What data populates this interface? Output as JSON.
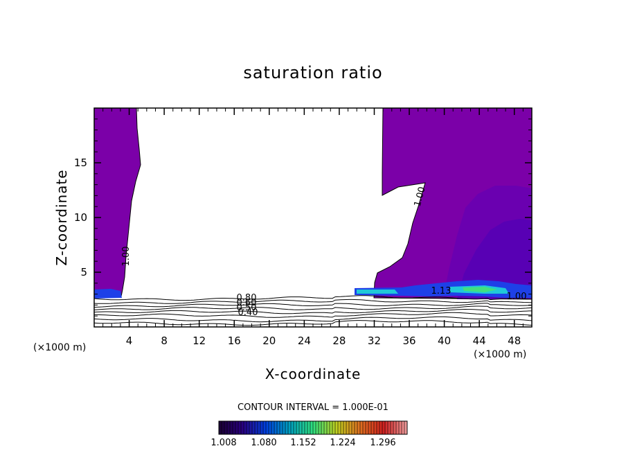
{
  "chart_data": {
    "type": "heatmap",
    "title": "saturation ratio",
    "xlabel": "X-coordinate",
    "ylabel": "Z-coordinate",
    "x_unit": "(×1000 m)",
    "z_unit": "(×1000 m)",
    "xlim": [
      0,
      50
    ],
    "ylim": [
      0,
      20
    ],
    "x_ticks": [
      4,
      8,
      12,
      16,
      20,
      24,
      28,
      32,
      36,
      40,
      44,
      48
    ],
    "y_ticks": [
      5,
      10,
      15
    ],
    "contour_interval": "CONTOUR INTERVAL = 1.000E-01",
    "contour_labels": [
      "1.00",
      "1.00",
      "0.80",
      "0.60",
      "0.50",
      "0.40",
      "1.13",
      "1.00"
    ],
    "colorbar": {
      "ticks": [
        "1.008",
        "1.080",
        "1.152",
        "1.224",
        "1.296"
      ],
      "colors": [
        "#1a0033",
        "#2a0080",
        "#0040e0",
        "#00a0c0",
        "#30e080",
        "#c0d020",
        "#e07020",
        "#d02020",
        "#f0a0a0"
      ]
    },
    "colors": {
      "fill_main": "#7b00a8",
      "fill_mid": "#6a00b0",
      "fill_deep": "#5800b4",
      "fill_blue": "#1e40e8",
      "fill_cyan": "#20c8d8",
      "fill_green": "#40e080"
    }
  }
}
